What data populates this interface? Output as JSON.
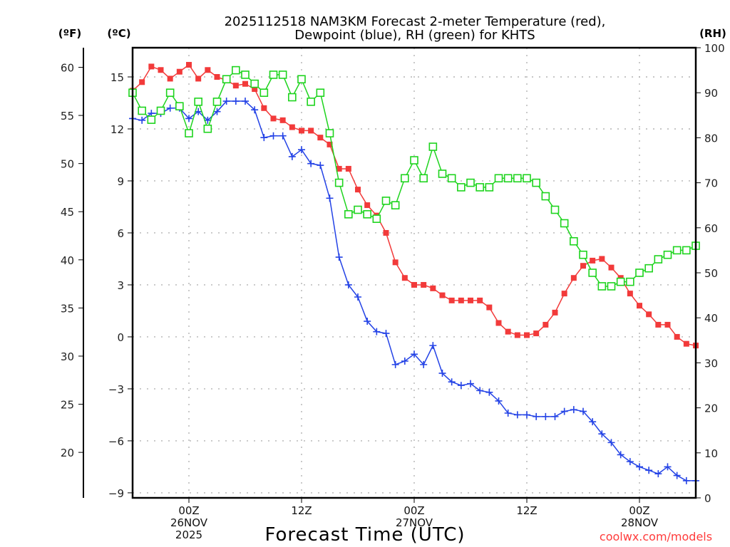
{
  "chart_data": {
    "type": "line",
    "title": [
      "2025112518 NAM3KM Forecast 2-meter Temperature (red),",
      "Dewpoint (blue), RH (green) for KHTS"
    ],
    "xlabel": "Forecast Time (UTC)",
    "units": {
      "fahrenheit": "(ºF)",
      "celsius": "(ºC)",
      "rh": "(RH)"
    },
    "credit": "coolwx.com/models",
    "x_unit": "forecast hour (hourly, from 18Z 25NOV2025)",
    "x": [
      0,
      1,
      2,
      3,
      4,
      5,
      6,
      7,
      8,
      9,
      10,
      11,
      12,
      13,
      14,
      15,
      16,
      17,
      18,
      19,
      20,
      21,
      22,
      23,
      24,
      25,
      26,
      27,
      28,
      29,
      30,
      31,
      32,
      33,
      34,
      35,
      36,
      37,
      38,
      39,
      40,
      41,
      42,
      43,
      44,
      45,
      46,
      47,
      48,
      49,
      50,
      51,
      52,
      53,
      54,
      55,
      56,
      57,
      58,
      59,
      60
    ],
    "xlim": [
      0,
      60
    ],
    "x_ticks": [
      {
        "hour": 6,
        "lines": [
          "00Z",
          "26NOV",
          "2025"
        ]
      },
      {
        "hour": 18,
        "lines": [
          "12Z"
        ]
      },
      {
        "hour": 30,
        "lines": [
          "00Z",
          "27NOV"
        ]
      },
      {
        "hour": 42,
        "lines": [
          "12Z"
        ]
      },
      {
        "hour": 54,
        "lines": [
          "00Z",
          "28NOV"
        ]
      }
    ],
    "y_celsius": {
      "ylim": [
        -9.6,
        16.7
      ],
      "ticks": [
        15,
        12,
        9,
        6,
        3,
        0,
        -3,
        -6,
        -9
      ],
      "tick_labels": [
        "15",
        "12",
        "9",
        "6",
        "3",
        "0",
        "−3",
        "−6",
        "−9"
      ]
    },
    "y_fahrenheit": {
      "ticks": [
        60,
        55,
        50,
        45,
        40,
        35,
        30,
        25,
        20
      ],
      "tick_labels": [
        "60",
        "55",
        "50",
        "45",
        "40",
        "35",
        "30",
        "25",
        "20"
      ]
    },
    "y_rh": {
      "ylim": [
        0,
        100
      ],
      "ticks": [
        100,
        90,
        80,
        70,
        60,
        50,
        40,
        30,
        20,
        10,
        0
      ],
      "tick_labels": [
        "100",
        "90",
        "80",
        "70",
        "60",
        "50",
        "40",
        "30",
        "20",
        "10",
        "0"
      ]
    },
    "grid": true,
    "series": [
      {
        "name": "Temperature",
        "axis": "celsius",
        "color": "#f23a3a",
        "marker": "filled-square",
        "values": [
          14.2,
          14.7,
          15.6,
          15.4,
          14.9,
          15.3,
          15.7,
          14.9,
          15.4,
          15.0,
          14.8,
          14.5,
          14.6,
          14.3,
          13.2,
          12.6,
          12.5,
          12.1,
          11.9,
          11.9,
          11.5,
          11.1,
          9.7,
          9.7,
          8.5,
          7.6,
          7.0,
          6.0,
          4.3,
          3.4,
          3.0,
          3.0,
          2.8,
          2.4,
          2.1,
          2.1,
          2.1,
          2.1,
          1.7,
          0.8,
          0.3,
          0.1,
          0.1,
          0.2,
          0.7,
          1.4,
          2.5,
          3.4,
          4.1,
          4.4,
          4.5,
          4.0,
          3.4,
          2.5,
          1.8,
          1.3,
          0.7,
          0.7,
          0.0,
          -0.4,
          -0.5
        ]
      },
      {
        "name": "Dewpoint",
        "axis": "celsius",
        "color": "#2443e6",
        "marker": "plus",
        "values": [
          12.6,
          12.5,
          12.9,
          12.9,
          13.2,
          13.2,
          12.6,
          13.0,
          12.5,
          13.0,
          13.6,
          13.6,
          13.6,
          13.1,
          11.5,
          11.6,
          11.6,
          10.4,
          10.8,
          10.0,
          9.9,
          8.0,
          4.6,
          3.0,
          2.3,
          0.9,
          0.3,
          0.2,
          -1.6,
          -1.4,
          -1.0,
          -1.6,
          -0.5,
          -2.1,
          -2.6,
          -2.8,
          -2.7,
          -3.1,
          -3.2,
          -3.7,
          -4.4,
          -4.5,
          -4.5,
          -4.6,
          -4.6,
          -4.6,
          -4.3,
          -4.2,
          -4.3,
          -4.9,
          -5.6,
          -6.1,
          -6.8,
          -7.2,
          -7.5,
          -7.7,
          -7.9,
          -7.5,
          -8.0,
          -8.3,
          -8.3
        ]
      },
      {
        "name": "RH",
        "axis": "rh",
        "color": "#1ed41e",
        "marker": "open-square",
        "values": [
          90,
          86,
          84,
          86,
          90,
          87,
          81,
          88,
          82,
          88,
          93,
          95,
          94,
          92,
          90,
          94,
          94,
          89,
          93,
          88,
          90,
          81,
          70,
          63,
          64,
          63,
          62,
          66,
          65,
          71,
          75,
          71,
          78,
          72,
          71,
          69,
          70,
          69,
          69,
          71,
          71,
          71,
          71,
          70,
          67,
          64,
          61,
          57,
          54,
          50,
          47,
          47,
          48,
          48,
          50,
          51,
          53,
          54,
          55,
          55,
          56
        ]
      }
    ]
  }
}
